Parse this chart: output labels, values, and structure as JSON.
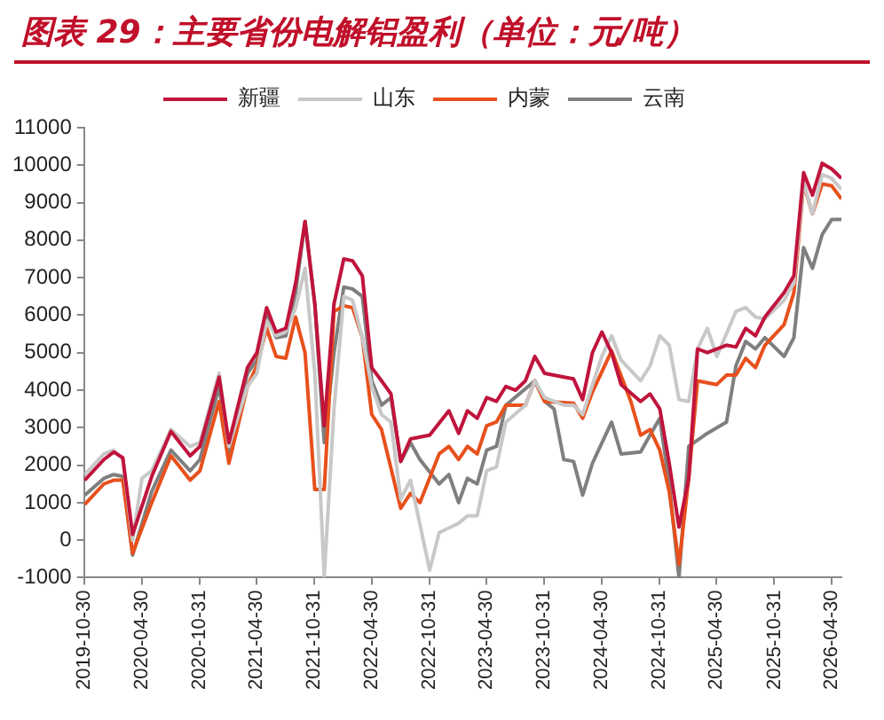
{
  "chart_data": {
    "type": "line",
    "title": "图表 29：主要省份电解铝盈利（单位：元/吨）",
    "xlim": [
      "2019-10-30",
      "2026-06"
    ],
    "xticks": [
      "2019-10-30",
      "2020-04-30",
      "2020-10-31",
      "2021-04-30",
      "2021-10-31",
      "2022-04-30",
      "2022-10-31",
      "2023-04-30",
      "2023-10-31",
      "2024-04-30",
      "2024-10-31",
      "2025-04-30",
      "2025-10-31",
      "2026-04-30"
    ],
    "ylim": [
      -1000,
      11000
    ],
    "yticks": [
      -1000,
      0,
      1000,
      2000,
      3000,
      4000,
      5000,
      6000,
      7000,
      8000,
      9000,
      10000,
      11000
    ],
    "grid": false,
    "legend": "top",
    "series": [
      {
        "name": "新疆",
        "color": "#c0143c",
        "x": [
          "2019-11",
          "2020-01",
          "2020-02",
          "2020-03",
          "2020-04",
          "2020-06",
          "2020-08",
          "2020-10",
          "2020-11",
          "2021-01",
          "2021-02",
          "2021-04",
          "2021-05",
          "2021-06",
          "2021-07",
          "2021-08",
          "2021-09",
          "2021-10",
          "2021-11",
          "2021-12",
          "2022-01",
          "2022-02",
          "2022-03",
          "2022-04",
          "2022-05",
          "2022-06",
          "2022-07",
          "2022-08",
          "2022-09",
          "2022-11",
          "2023-01",
          "2023-02",
          "2023-03",
          "2023-04",
          "2023-05",
          "2023-06",
          "2023-07",
          "2023-08",
          "2023-09",
          "2023-10",
          "2023-11",
          "2024-01",
          "2024-02",
          "2024-03",
          "2024-04",
          "2024-05",
          "2024-06",
          "2024-07",
          "2024-09",
          "2024-10",
          "2024-11",
          "2024-12",
          "2025-01",
          "2025-02",
          "2025-03",
          "2025-04",
          "2025-06",
          "2025-07",
          "2025-08",
          "2025-09",
          "2025-10",
          "2025-12",
          "2026-01",
          "2026-02",
          "2026-03",
          "2026-04",
          "2026-05",
          "2026-06"
        ],
        "values": [
          1600,
          2150,
          2350,
          2200,
          150,
          1700,
          2900,
          2250,
          2500,
          4350,
          2600,
          4600,
          5000,
          6200,
          5550,
          5650,
          6850,
          8500,
          6300,
          3050,
          6300,
          7500,
          7450,
          7050,
          4600,
          4250,
          3900,
          2100,
          2700,
          2800,
          3450,
          2850,
          3450,
          3250,
          3800,
          3700,
          4100,
          4000,
          4250,
          4900,
          4450,
          4350,
          4300,
          3750,
          5000,
          5550,
          5000,
          4150,
          3700,
          3900,
          3500,
          2050,
          350,
          1650,
          5100,
          5000,
          5200,
          5150,
          5650,
          5450,
          5950,
          6600,
          7050,
          9800,
          9200,
          10050,
          9900,
          9650
        ]
      },
      {
        "name": "山东",
        "color": "#c8c8c8",
        "x": [
          "2019-11",
          "2020-01",
          "2020-02",
          "2020-03",
          "2020-04",
          "2020-05",
          "2020-06",
          "2020-08",
          "2020-10",
          "2020-11",
          "2021-01",
          "2021-02",
          "2021-04",
          "2021-05",
          "2021-06",
          "2021-07",
          "2021-08",
          "2021-09",
          "2021-10",
          "2021-11",
          "2021-12",
          "2022-01",
          "2022-02",
          "2022-03",
          "2022-04",
          "2022-05",
          "2022-06",
          "2022-07",
          "2022-08",
          "2022-09",
          "2022-11",
          "2022-12",
          "2023-02",
          "2023-03",
          "2023-04",
          "2023-05",
          "2023-06",
          "2023-07",
          "2023-09",
          "2023-10",
          "2023-11",
          "2024-01",
          "2024-02",
          "2024-03",
          "2024-05",
          "2024-06",
          "2024-07",
          "2024-09",
          "2024-10",
          "2024-11",
          "2024-12",
          "2025-01",
          "2025-02",
          "2025-03",
          "2025-04",
          "2025-05",
          "2025-07",
          "2025-08",
          "2025-09",
          "2025-10",
          "2025-12",
          "2026-01",
          "2026-02",
          "2026-03",
          "2026-04",
          "2026-05",
          "2026-06"
        ],
        "values": [
          1750,
          2300,
          2400,
          2150,
          0,
          1650,
          1850,
          2950,
          2500,
          2600,
          4450,
          2500,
          4100,
          4450,
          5850,
          5450,
          5550,
          6200,
          7250,
          4450,
          -950,
          3500,
          6500,
          6400,
          5400,
          4100,
          3350,
          3150,
          1100,
          1600,
          -800,
          200,
          450,
          650,
          650,
          1850,
          1950,
          3150,
          3600,
          4250,
          3800,
          3600,
          3600,
          3350,
          4900,
          5450,
          4800,
          4250,
          4650,
          5450,
          5200,
          3750,
          3700,
          5100,
          5650,
          4900,
          6100,
          6200,
          5950,
          5900,
          6400,
          6850,
          9550,
          8700,
          9750,
          9650,
          9350
        ]
      },
      {
        "name": "内蒙",
        "color": "#e8501c",
        "x": [
          "2019-11",
          "2020-01",
          "2020-02",
          "2020-03",
          "2020-04",
          "2020-06",
          "2020-08",
          "2020-10",
          "2020-11",
          "2021-01",
          "2021-02",
          "2021-04",
          "2021-05",
          "2021-06",
          "2021-07",
          "2021-08",
          "2021-09",
          "2021-10",
          "2021-11",
          "2021-12",
          "2022-01",
          "2022-02",
          "2022-03",
          "2022-04",
          "2022-05",
          "2022-06",
          "2022-08",
          "2022-09",
          "2022-10",
          "2022-12",
          "2023-01",
          "2023-02",
          "2023-03",
          "2023-04",
          "2023-05",
          "2023-06",
          "2023-07",
          "2023-09",
          "2023-10",
          "2023-11",
          "2024-02",
          "2024-03",
          "2024-04",
          "2024-06",
          "2024-08",
          "2024-09",
          "2024-10",
          "2024-11",
          "2024-12",
          "2025-01",
          "2025-02",
          "2025-03",
          "2025-05",
          "2025-06",
          "2025-07",
          "2025-08",
          "2025-09",
          "2025-10",
          "2025-12",
          "2026-01",
          "2026-02",
          "2026-03",
          "2026-04",
          "2026-05",
          "2026-06"
        ],
        "values": [
          950,
          1500,
          1600,
          1600,
          -350,
          1000,
          2250,
          1600,
          1850,
          3700,
          2050,
          4100,
          4650,
          5650,
          4900,
          4850,
          5950,
          5000,
          1350,
          1350,
          6100,
          6250,
          6200,
          5400,
          3350,
          2950,
          850,
          1250,
          1000,
          2300,
          2500,
          2150,
          2500,
          2300,
          3050,
          3150,
          3600,
          3600,
          4250,
          3700,
          3650,
          3250,
          3950,
          5050,
          3700,
          2800,
          2950,
          2400,
          1300,
          -650,
          1650,
          4250,
          4150,
          4400,
          4400,
          4850,
          4600,
          5200,
          5750,
          6600,
          9500,
          8700,
          9500,
          9450,
          9100
        ]
      },
      {
        "name": "云南",
        "color": "#7f7f7f",
        "x": [
          "2019-11",
          "2020-01",
          "2020-02",
          "2020-03",
          "2020-04",
          "2020-06",
          "2020-08",
          "2020-10",
          "2020-11",
          "2021-01",
          "2021-02",
          "2021-04",
          "2021-05",
          "2021-06",
          "2021-07",
          "2021-08",
          "2021-09",
          "2021-10",
          "2021-11",
          "2021-12",
          "2022-01",
          "2022-02",
          "2022-03",
          "2022-04",
          "2022-05",
          "2022-06",
          "2022-07",
          "2022-08",
          "2022-09",
          "2022-10",
          "2022-12",
          "2023-01",
          "2023-02",
          "2023-03",
          "2023-04",
          "2023-05",
          "2023-06",
          "2023-07",
          "2023-10",
          "2023-11",
          "2023-12",
          "2024-01",
          "2024-02",
          "2024-03",
          "2024-04",
          "2024-06",
          "2024-07",
          "2024-09",
          "2024-10",
          "2024-11",
          "2024-12",
          "2025-01",
          "2025-02",
          "2025-04",
          "2025-06",
          "2025-07",
          "2025-08",
          "2025-09",
          "2025-10",
          "2025-12",
          "2026-01",
          "2026-02",
          "2026-03",
          "2026-04",
          "2026-05",
          "2026-06"
        ],
        "values": [
          1200,
          1650,
          1750,
          1700,
          -400,
          1300,
          2400,
          1850,
          2150,
          4100,
          2300,
          4450,
          4800,
          6050,
          5400,
          5450,
          6600,
          8500,
          6300,
          2600,
          5000,
          6750,
          6700,
          6500,
          4250,
          3600,
          3800,
          2100,
          2600,
          2150,
          1500,
          1750,
          1000,
          1650,
          1500,
          2400,
          2500,
          3600,
          4250,
          3700,
          3500,
          2150,
          2100,
          1200,
          2050,
          3150,
          2300,
          2350,
          2800,
          3250,
          1500,
          -1000,
          2500,
          2850,
          3150,
          4650,
          5300,
          5100,
          5400,
          4900,
          5400,
          7800,
          7250,
          8150,
          8550,
          8550
        ]
      }
    ]
  }
}
